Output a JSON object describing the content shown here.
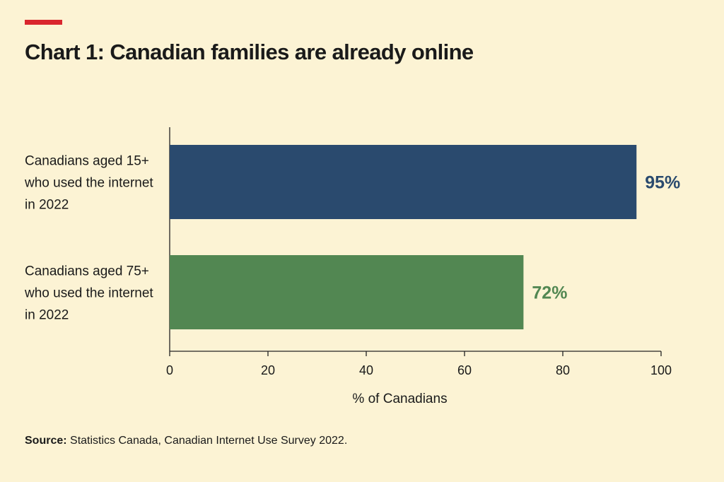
{
  "accent_color": "#d9262e",
  "title": "Chart 1: Canadian families are already online",
  "source": {
    "label": "Source:",
    "text": "Statistics Canada, Canadian Internet Use Survey 2022."
  },
  "chart_data": {
    "type": "bar",
    "orientation": "horizontal",
    "categories": [
      [
        "Canadians aged 15+",
        "who used the internet",
        "in 2022"
      ],
      [
        "Canadians aged 75+",
        "who used the internet",
        "in 2022"
      ]
    ],
    "values": [
      95,
      72
    ],
    "value_labels": [
      "95%",
      "72%"
    ],
    "colors": [
      "#2a4a6e",
      "#528752"
    ],
    "xlabel": "% of Canadians",
    "xlim": [
      0,
      100
    ],
    "xticks": [
      0,
      20,
      40,
      60,
      80,
      100
    ],
    "grid": false,
    "legend": "none"
  }
}
